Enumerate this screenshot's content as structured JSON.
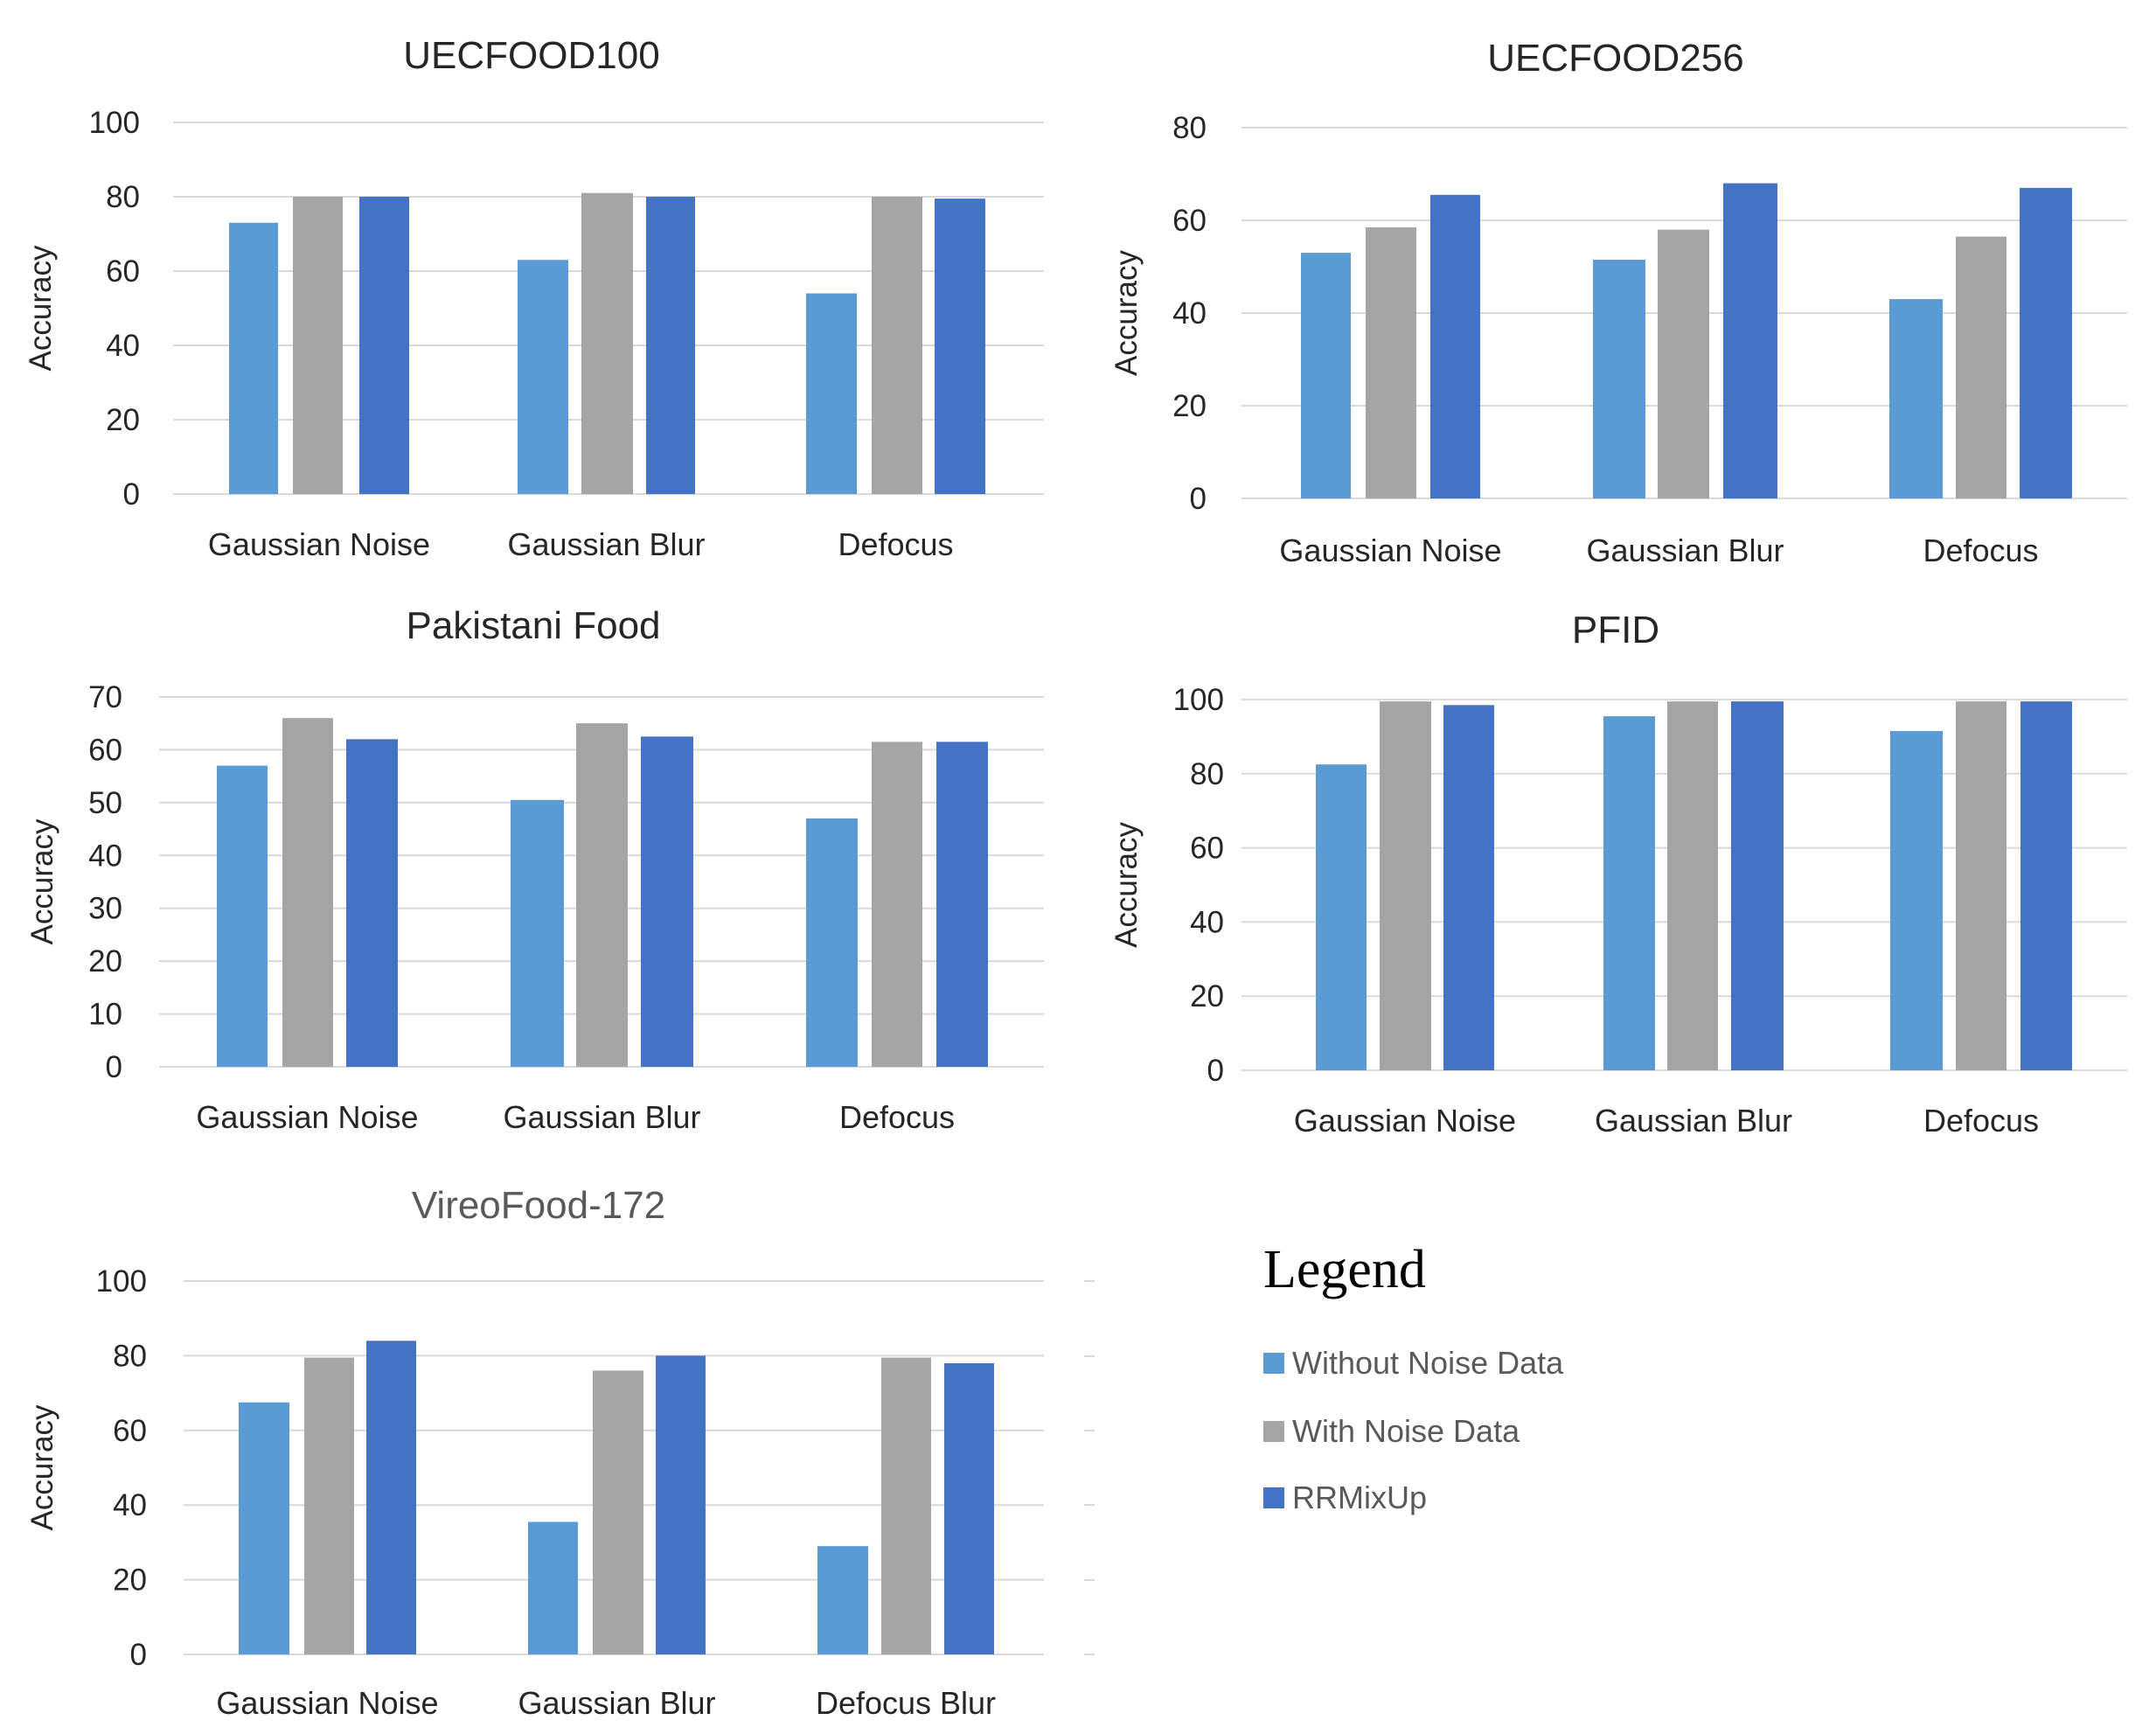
{
  "colors": {
    "without_noise": "#5B9BD5",
    "with_noise": "#A5A5A5",
    "rrmixup": "#4472C4",
    "grid": "#D9D9D9",
    "text": "#262626",
    "title_muted": "#595959"
  },
  "legend": {
    "title": "Legend",
    "items": [
      "Without Noise Data",
      "With Noise Data",
      "RRMixUp"
    ]
  },
  "chart_data": [
    {
      "type": "bar",
      "title": "UECFOOD100",
      "ylabel": "Accuracy",
      "xlabel": "",
      "ylim": [
        0,
        100
      ],
      "yticks": [
        0,
        20,
        40,
        60,
        80,
        100
      ],
      "categories": [
        "Gaussian Noise",
        "Gaussian Blur",
        "Defocus"
      ],
      "series": [
        {
          "name": "Without Noise Data",
          "values": [
            73,
            63,
            54
          ]
        },
        {
          "name": "With Noise Data",
          "values": [
            80,
            81,
            80
          ]
        },
        {
          "name": "RRMixUp",
          "values": [
            80,
            80,
            79.5
          ]
        }
      ]
    },
    {
      "type": "bar",
      "title": "UECFOOD256",
      "ylabel": "Accuracy",
      "xlabel": "",
      "ylim": [
        0,
        80
      ],
      "yticks": [
        0,
        20,
        40,
        60,
        80
      ],
      "categories": [
        "Gaussian Noise",
        "Gaussian Blur",
        "Defocus"
      ],
      "series": [
        {
          "name": "Without Noise Data",
          "values": [
            53,
            51.5,
            43
          ]
        },
        {
          "name": "With Noise Data",
          "values": [
            58.5,
            58,
            56.5
          ]
        },
        {
          "name": "RRMixUp",
          "values": [
            65.5,
            68,
            67
          ]
        }
      ]
    },
    {
      "type": "bar",
      "title": "Pakistani Food",
      "ylabel": "Accuracy",
      "xlabel": "",
      "ylim": [
        0,
        70
      ],
      "yticks": [
        0,
        10,
        20,
        30,
        40,
        50,
        60,
        70
      ],
      "categories": [
        "Gaussian Noise",
        "Gaussian Blur",
        "Defocus"
      ],
      "series": [
        {
          "name": "Without Noise Data",
          "values": [
            57,
            50.5,
            47
          ]
        },
        {
          "name": "With Noise Data",
          "values": [
            66,
            65,
            61.5
          ]
        },
        {
          "name": "RRMixUp",
          "values": [
            62,
            62.5,
            61.5
          ]
        }
      ]
    },
    {
      "type": "bar",
      "title": "PFID",
      "ylabel": "Accuracy",
      "xlabel": "",
      "ylim": [
        0,
        100
      ],
      "yticks": [
        0,
        20,
        40,
        60,
        80,
        100
      ],
      "categories": [
        "Gaussian Noise",
        "Gaussian Blur",
        "Defocus"
      ],
      "series": [
        {
          "name": "Without Noise Data",
          "values": [
            82.5,
            95.5,
            91.5
          ]
        },
        {
          "name": "With Noise Data",
          "values": [
            99.5,
            99.5,
            99.5
          ]
        },
        {
          "name": "RRMixUp",
          "values": [
            98.5,
            99.5,
            99.5
          ]
        }
      ]
    },
    {
      "type": "bar",
      "title": "VireoFood-172",
      "ylabel": "Accuracy",
      "xlabel": "",
      "ylim": [
        0,
        100
      ],
      "yticks": [
        0,
        20,
        40,
        60,
        80,
        100
      ],
      "categories": [
        "Gaussian Noise",
        "Gaussian Blur",
        "Defocus Blur"
      ],
      "series": [
        {
          "name": "Without Noise Data",
          "values": [
            67.5,
            35.5,
            29
          ]
        },
        {
          "name": "With Noise Data",
          "values": [
            79.5,
            76,
            79.5
          ]
        },
        {
          "name": "RRMixUp",
          "values": [
            84,
            80,
            78
          ]
        }
      ]
    }
  ]
}
